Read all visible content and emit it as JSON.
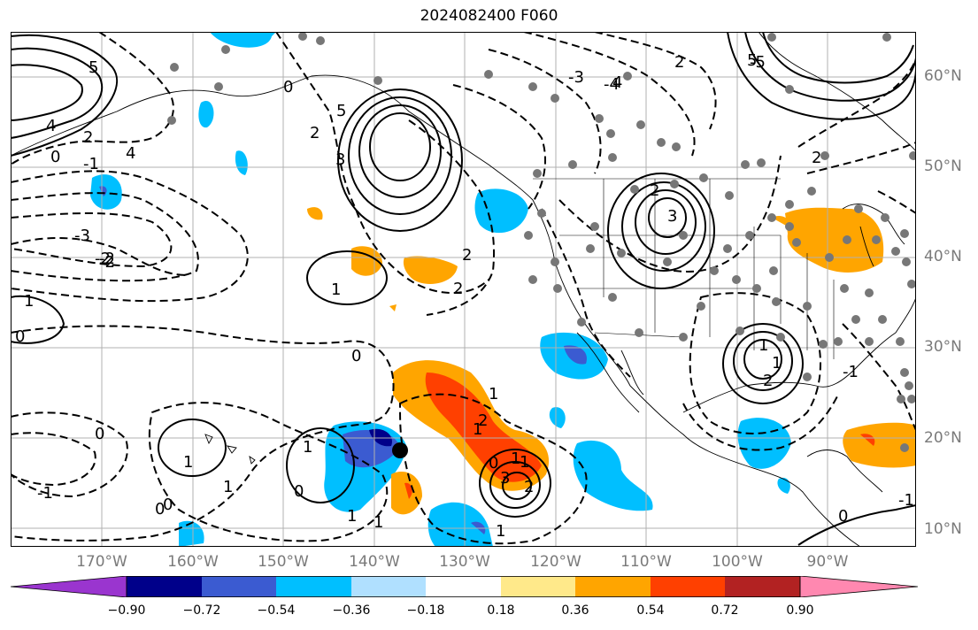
{
  "title": "2024082400 F060",
  "lat_labels": [
    "60°N",
    "50°N",
    "40°N",
    "30°N",
    "20°N",
    "10°N"
  ],
  "lon_labels": [
    "170°W",
    "160°W",
    "150°W",
    "140°W",
    "130°W",
    "120°W",
    "110°W",
    "100°W",
    "90°W"
  ],
  "colorbar": {
    "ticks": [
      "−0.90",
      "−0.72",
      "−0.54",
      "−0.36",
      "−0.18",
      "0.18",
      "0.36",
      "0.54",
      "0.72",
      "0.90"
    ],
    "colors": [
      "#9a35cf",
      "#00008a",
      "#3b5bd1",
      "#00bfff",
      "#b0e0ff",
      "#ffffff",
      "#ffe98a",
      "#ffa500",
      "#ff4000",
      "#b22222",
      "#ff88b0"
    ]
  },
  "contour_labels": [
    "5",
    "4",
    "2",
    "0",
    "-1",
    "4",
    "-2",
    "-3",
    "-2",
    "1",
    "1",
    "0",
    "0",
    "-1",
    "0",
    "5",
    "3",
    "1",
    "0",
    "2",
    "1",
    "2",
    "3",
    "2",
    "2",
    "3",
    "4",
    "5",
    "2",
    "1",
    "1",
    "-2",
    "0",
    "1",
    "1",
    "2",
    "1",
    "2",
    "1",
    "0",
    "1",
    "0",
    "-1",
    "1",
    "0",
    "-1",
    "0",
    "2",
    "1",
    "1",
    "2",
    "-3",
    "-4",
    "-5"
  ]
}
